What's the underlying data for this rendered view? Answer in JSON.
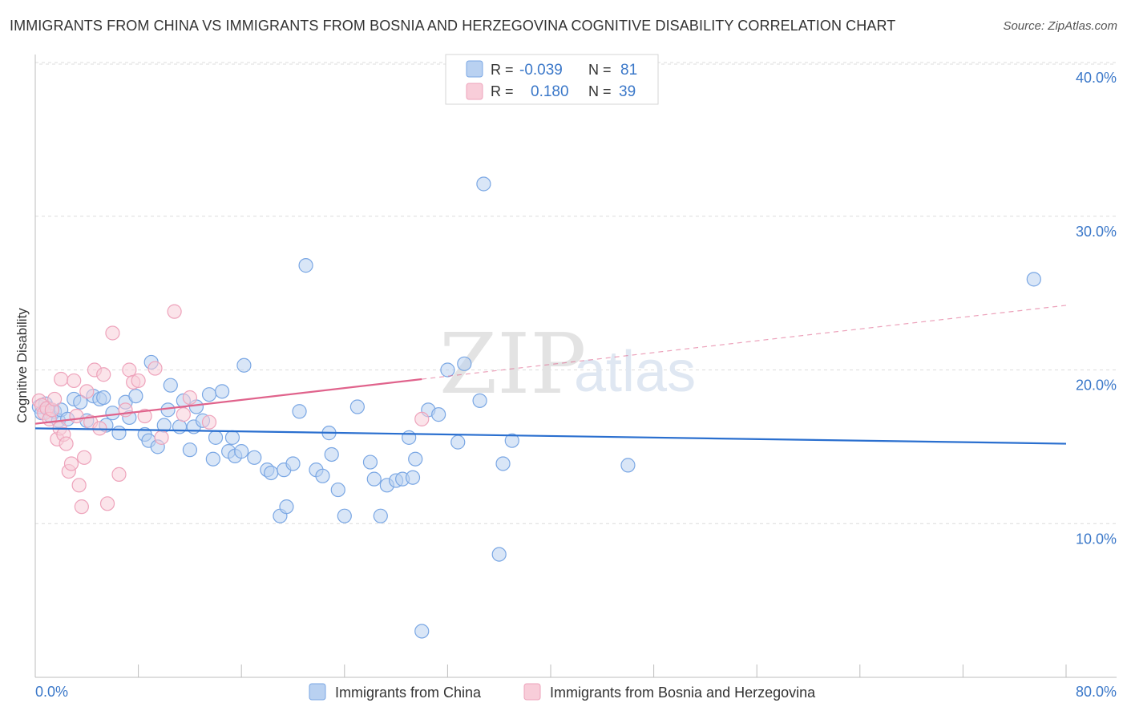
{
  "title": "IMMIGRANTS FROM CHINA VS IMMIGRANTS FROM BOSNIA AND HERZEGOVINA COGNITIVE DISABILITY CORRELATION CHART",
  "source": "Source: ZipAtlas.com",
  "watermark": {
    "zip": "ZIP",
    "atlas": "atlas"
  },
  "chart_data": {
    "type": "scatter",
    "title": "IMMIGRANTS FROM CHINA VS IMMIGRANTS FROM BOSNIA AND HERZEGOVINA COGNITIVE DISABILITY CORRELATION CHART",
    "xlabel": "",
    "ylabel": "Cognitive Disability",
    "xlim": [
      0,
      80
    ],
    "ylim": [
      0,
      40
    ],
    "x_tick_labels": [
      "0.0%",
      "80.0%"
    ],
    "y_ticks": [
      10,
      20,
      30,
      40
    ],
    "y_tick_labels": [
      "10.0%",
      "20.0%",
      "30.0%",
      "40.0%"
    ],
    "grid": true,
    "legend_position": "top-center",
    "stats": [
      {
        "r_label": "R =",
        "r": "-0.039",
        "n_label": "N =",
        "n": "81"
      },
      {
        "r_label": "R =",
        "r": "0.180",
        "n_label": "N =",
        "n": "39"
      }
    ],
    "series": [
      {
        "name": "Immigrants from China",
        "color": "#7aa7e4",
        "fill": "#b9d1f1",
        "line_color": "#2a6fcf",
        "trend": {
          "x": [
            0,
            80
          ],
          "y": [
            16.2,
            15.2
          ]
        },
        "points": [
          [
            0.3,
            17.6
          ],
          [
            0.5,
            17.2
          ],
          [
            0.8,
            17.8
          ],
          [
            1.0,
            17.5
          ],
          [
            1.2,
            17.0
          ],
          [
            1.5,
            17.3
          ],
          [
            1.8,
            16.7
          ],
          [
            2.0,
            17.4
          ],
          [
            2.5,
            16.8
          ],
          [
            3.0,
            18.1
          ],
          [
            3.5,
            17.9
          ],
          [
            4.0,
            16.7
          ],
          [
            4.5,
            18.3
          ],
          [
            5.0,
            18.1
          ],
          [
            5.3,
            18.2
          ],
          [
            5.5,
            16.4
          ],
          [
            6.0,
            17.2
          ],
          [
            6.5,
            15.9
          ],
          [
            7.0,
            17.9
          ],
          [
            7.3,
            16.9
          ],
          [
            7.8,
            18.3
          ],
          [
            8.5,
            15.8
          ],
          [
            8.8,
            15.4
          ],
          [
            9.0,
            20.5
          ],
          [
            9.5,
            15.0
          ],
          [
            10.0,
            16.4
          ],
          [
            10.3,
            17.4
          ],
          [
            10.5,
            19.0
          ],
          [
            11.2,
            16.3
          ],
          [
            11.5,
            18.0
          ],
          [
            12.0,
            14.8
          ],
          [
            12.3,
            16.3
          ],
          [
            12.5,
            17.6
          ],
          [
            13.0,
            16.7
          ],
          [
            13.5,
            18.4
          ],
          [
            13.8,
            14.2
          ],
          [
            14.0,
            15.6
          ],
          [
            14.5,
            18.6
          ],
          [
            15.0,
            14.7
          ],
          [
            15.3,
            15.6
          ],
          [
            15.5,
            14.4
          ],
          [
            16.0,
            14.7
          ],
          [
            16.2,
            20.3
          ],
          [
            17.0,
            14.3
          ],
          [
            18.0,
            13.5
          ],
          [
            18.3,
            13.3
          ],
          [
            19.0,
            10.5
          ],
          [
            19.3,
            13.5
          ],
          [
            19.5,
            11.1
          ],
          [
            20.0,
            13.9
          ],
          [
            20.5,
            17.3
          ],
          [
            21.0,
            26.8
          ],
          [
            21.8,
            13.5
          ],
          [
            22.3,
            13.1
          ],
          [
            22.8,
            15.9
          ],
          [
            23.0,
            14.5
          ],
          [
            23.5,
            12.2
          ],
          [
            24.0,
            10.5
          ],
          [
            25.0,
            17.6
          ],
          [
            26.0,
            14.0
          ],
          [
            26.3,
            12.9
          ],
          [
            26.8,
            10.5
          ],
          [
            27.3,
            12.5
          ],
          [
            28.0,
            12.8
          ],
          [
            28.5,
            12.9
          ],
          [
            29.0,
            15.6
          ],
          [
            29.3,
            13.0
          ],
          [
            29.5,
            14.2
          ],
          [
            30.5,
            17.4
          ],
          [
            31.3,
            17.1
          ],
          [
            32.0,
            20.0
          ],
          [
            32.8,
            15.3
          ],
          [
            33.3,
            20.4
          ],
          [
            34.5,
            18.0
          ],
          [
            34.8,
            32.1
          ],
          [
            36.0,
            8.0
          ],
          [
            36.3,
            13.9
          ],
          [
            37.0,
            15.4
          ],
          [
            30.0,
            3.0
          ],
          [
            46.0,
            13.8
          ],
          [
            77.5,
            25.9
          ]
        ]
      },
      {
        "name": "Immigrants from Bosnia and Herzegovina",
        "color": "#eea3bb",
        "fill": "#f8cdd9",
        "line_color": "#e0638c",
        "trend": {
          "x": [
            0,
            30
          ],
          "y": [
            16.5,
            19.4
          ]
        },
        "trend_extension": {
          "x": [
            30,
            80
          ],
          "y": [
            19.4,
            24.2
          ]
        },
        "points": [
          [
            0.3,
            18.0
          ],
          [
            0.5,
            17.7
          ],
          [
            0.7,
            17.2
          ],
          [
            0.9,
            17.5
          ],
          [
            1.1,
            16.8
          ],
          [
            1.3,
            17.4
          ],
          [
            1.5,
            18.1
          ],
          [
            1.7,
            15.5
          ],
          [
            1.9,
            16.2
          ],
          [
            2.0,
            19.4
          ],
          [
            2.2,
            15.8
          ],
          [
            2.4,
            15.2
          ],
          [
            2.6,
            13.4
          ],
          [
            2.8,
            13.9
          ],
          [
            3.0,
            19.3
          ],
          [
            3.2,
            17.0
          ],
          [
            3.4,
            12.5
          ],
          [
            3.6,
            11.1
          ],
          [
            3.8,
            14.3
          ],
          [
            4.0,
            18.6
          ],
          [
            4.3,
            16.6
          ],
          [
            4.6,
            20.0
          ],
          [
            5.0,
            16.2
          ],
          [
            5.3,
            19.7
          ],
          [
            5.6,
            11.3
          ],
          [
            6.0,
            22.4
          ],
          [
            6.5,
            13.2
          ],
          [
            7.0,
            17.4
          ],
          [
            7.3,
            20.0
          ],
          [
            7.6,
            19.2
          ],
          [
            8.0,
            19.3
          ],
          [
            8.5,
            17.0
          ],
          [
            9.3,
            20.1
          ],
          [
            9.8,
            15.6
          ],
          [
            10.8,
            23.8
          ],
          [
            11.5,
            17.1
          ],
          [
            12.0,
            18.2
          ],
          [
            13.5,
            16.6
          ],
          [
            30.0,
            16.8
          ]
        ]
      }
    ]
  },
  "legend": {
    "series_labels": [
      "Immigrants from China",
      "Immigrants from Bosnia and Herzegovina"
    ]
  }
}
